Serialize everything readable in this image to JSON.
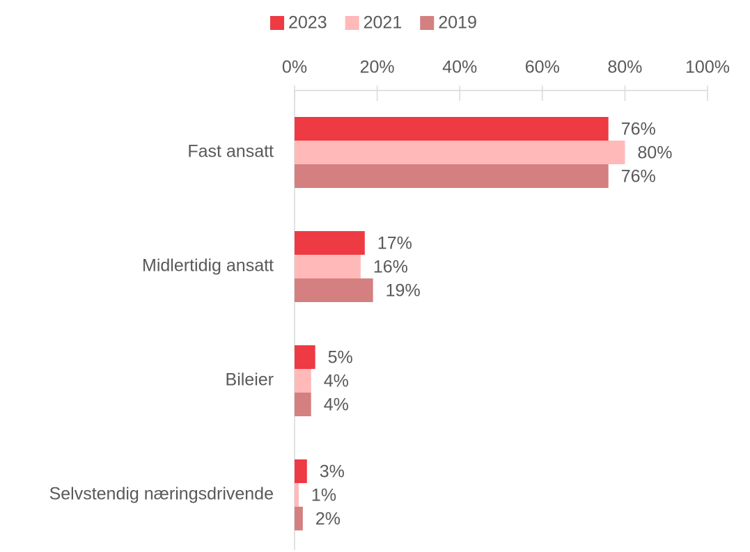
{
  "chart_data": {
    "type": "hbar",
    "categories": [
      "Fast ansatt",
      "Midlertidig ansatt",
      "Bileier",
      "Selvstendig næringsdrivende"
    ],
    "series": [
      {
        "name": "2023",
        "color": "#ee3a43",
        "values": [
          76,
          17,
          5,
          3
        ],
        "value_labels": [
          "76%",
          "17%",
          "5%",
          "3%"
        ]
      },
      {
        "name": "2021",
        "color": "#ffb9b9",
        "values": [
          80,
          16,
          4,
          1
        ],
        "value_labels": [
          "80%",
          "16%",
          "4%",
          "1%"
        ]
      },
      {
        "name": "2019",
        "color": "#d48080",
        "values": [
          76,
          19,
          4,
          2
        ],
        "value_labels": [
          "76%",
          "19%",
          "4%",
          "2%"
        ]
      }
    ],
    "xlim": [
      0,
      100
    ],
    "xticks": [
      {
        "value": 0,
        "label": "0%"
      },
      {
        "value": 20,
        "label": "20%"
      },
      {
        "value": 40,
        "label": "40%"
      },
      {
        "value": 60,
        "label": "60%"
      },
      {
        "value": 80,
        "label": "80%"
      },
      {
        "value": 100,
        "label": "100%"
      }
    ],
    "legend": "top"
  }
}
